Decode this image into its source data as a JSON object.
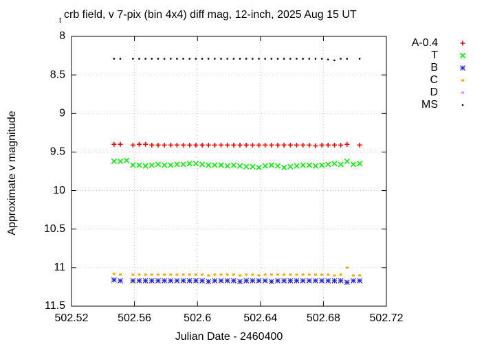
{
  "chart_data": {
    "type": "scatter",
    "title_prefix": "t",
    "title": "crb field, v 7-pix (bin 4x4) diff mag, 12-inch, 2025 Aug 15 UT",
    "x_label": "Julian Date - 2460400",
    "y_label": "Approximate v magnitude",
    "xlim": [
      502.52,
      502.72
    ],
    "xticks": [
      502.52,
      502.56,
      502.6,
      502.64,
      502.68,
      502.72
    ],
    "ylim": [
      11.5,
      8
    ],
    "yticks": [
      8,
      8.5,
      9,
      9.5,
      10,
      10.5,
      11,
      11.5
    ],
    "y_inverted": true,
    "grid": true,
    "legend": "outside-right",
    "x": [
      502.547,
      502.551,
      502.555,
      502.559,
      502.563,
      502.567,
      502.571,
      502.575,
      502.579,
      502.583,
      502.587,
      502.591,
      502.595,
      502.599,
      502.603,
      502.607,
      502.611,
      502.615,
      502.619,
      502.623,
      502.627,
      502.631,
      502.635,
      502.639,
      502.643,
      502.647,
      502.651,
      502.655,
      502.659,
      502.663,
      502.667,
      502.671,
      502.675,
      502.679,
      502.683,
      502.687,
      502.691,
      502.695,
      502.699,
      502.703
    ],
    "series": [
      {
        "name": "A-0.4",
        "color": "#ff0000",
        "marker": "plus",
        "values": [
          9.4,
          9.4,
          null,
          9.41,
          9.4,
          9.4,
          9.41,
          9.41,
          9.41,
          9.41,
          9.41,
          9.41,
          9.41,
          9.41,
          9.41,
          9.41,
          9.41,
          9.41,
          9.41,
          9.41,
          9.41,
          9.41,
          9.41,
          9.41,
          9.41,
          9.41,
          9.41,
          9.41,
          9.41,
          9.41,
          9.41,
          9.41,
          9.42,
          9.41,
          9.41,
          9.41,
          9.41,
          9.4,
          null,
          9.41
        ]
      },
      {
        "name": "T",
        "color": "#00ee00",
        "marker": "cross",
        "values": [
          9.62,
          9.62,
          9.61,
          9.67,
          9.67,
          9.68,
          9.67,
          9.66,
          9.67,
          9.67,
          9.66,
          9.66,
          9.65,
          9.65,
          9.66,
          9.67,
          9.67,
          9.67,
          9.68,
          9.67,
          9.68,
          9.69,
          9.69,
          9.7,
          9.68,
          9.67,
          9.68,
          9.7,
          9.69,
          9.68,
          9.67,
          9.67,
          9.68,
          9.67,
          9.66,
          9.65,
          9.66,
          9.62,
          9.66,
          9.65
        ]
      },
      {
        "name": "B",
        "color": "#2222dd",
        "marker": "star",
        "values": [
          11.16,
          11.17,
          null,
          11.17,
          11.17,
          11.17,
          11.17,
          11.17,
          11.17,
          11.17,
          11.17,
          11.17,
          11.17,
          11.17,
          11.17,
          11.18,
          11.17,
          11.17,
          11.17,
          11.17,
          11.18,
          11.17,
          11.17,
          11.17,
          11.17,
          11.18,
          11.17,
          11.17,
          11.17,
          11.17,
          11.17,
          11.17,
          11.17,
          11.17,
          11.17,
          11.17,
          11.17,
          11.19,
          11.17,
          11.17
        ]
      },
      {
        "name": "C",
        "color": "#ffa500",
        "marker": "square",
        "values": [
          11.08,
          11.09,
          null,
          11.09,
          11.09,
          11.09,
          11.09,
          11.09,
          11.09,
          11.09,
          11.09,
          11.09,
          11.09,
          11.09,
          11.09,
          11.1,
          11.09,
          11.09,
          11.09,
          11.09,
          11.1,
          11.09,
          11.09,
          11.1,
          11.09,
          11.09,
          11.09,
          11.09,
          11.09,
          11.09,
          11.09,
          11.09,
          11.09,
          11.09,
          11.09,
          11.1,
          11.09,
          11.0,
          11.1,
          11.1
        ]
      },
      {
        "name": "D",
        "color": "#ee82ee",
        "marker": "square",
        "values": [
          null,
          null,
          null,
          null,
          null,
          null,
          null,
          null,
          null,
          null,
          null,
          null,
          null,
          null,
          null,
          null,
          null,
          null,
          null,
          null,
          null,
          null,
          null,
          null,
          null,
          null,
          null,
          null,
          null,
          null,
          null,
          null,
          null,
          null,
          null,
          null,
          null,
          null,
          null,
          null
        ]
      },
      {
        "name": "MS",
        "color": "#000000",
        "marker": "dot",
        "values": [
          8.29,
          8.29,
          null,
          8.29,
          8.29,
          8.29,
          8.29,
          8.29,
          8.29,
          8.29,
          8.29,
          8.29,
          8.29,
          8.29,
          8.29,
          8.29,
          8.29,
          8.29,
          8.29,
          8.29,
          8.29,
          8.29,
          8.29,
          8.29,
          8.29,
          8.29,
          8.29,
          8.29,
          8.29,
          8.29,
          8.29,
          8.29,
          8.29,
          8.29,
          8.3,
          8.31,
          8.29,
          8.29,
          null,
          8.29
        ]
      }
    ]
  }
}
